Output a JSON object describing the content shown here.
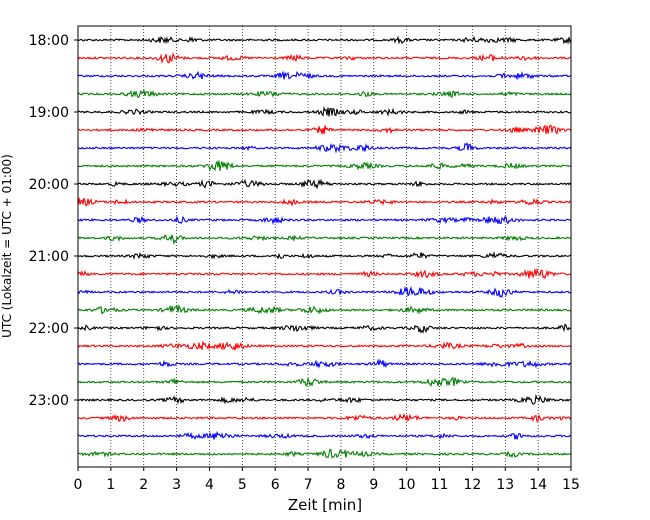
{
  "chart_data": {
    "type": "line",
    "xlabel": "Zeit  [min]",
    "ylabel": "UTC (Lokalzeit = UTC + 01:00)",
    "xlim": [
      0,
      15
    ],
    "x_ticks": [
      "0",
      "1",
      "2",
      "3",
      "4",
      "5",
      "6",
      "7",
      "8",
      "9",
      "10",
      "11",
      "12",
      "13",
      "14",
      "15"
    ],
    "y_ticks": [
      {
        "label": "18:00",
        "trace_index": 0
      },
      {
        "label": "19:00",
        "trace_index": 4
      },
      {
        "label": "20:00",
        "trace_index": 8
      },
      {
        "label": "21:00",
        "trace_index": 12
      },
      {
        "label": "22:00",
        "trace_index": 16
      },
      {
        "label": "23:00",
        "trace_index": 20
      }
    ],
    "trace_colors": [
      "#000000",
      "#ff0000",
      "#0000ff",
      "#008000"
    ],
    "traces": [
      {
        "start": "18:00"
      },
      {
        "start": "18:15"
      },
      {
        "start": "18:30"
      },
      {
        "start": "18:45"
      },
      {
        "start": "19:00"
      },
      {
        "start": "19:15"
      },
      {
        "start": "19:30"
      },
      {
        "start": "19:45"
      },
      {
        "start": "20:00"
      },
      {
        "start": "20:15"
      },
      {
        "start": "20:30"
      },
      {
        "start": "20:45"
      },
      {
        "start": "21:00"
      },
      {
        "start": "21:15"
      },
      {
        "start": "21:30"
      },
      {
        "start": "21:45"
      },
      {
        "start": "22:00"
      },
      {
        "start": "22:15"
      },
      {
        "start": "22:30"
      },
      {
        "start": "22:45"
      },
      {
        "start": "23:00"
      },
      {
        "start": "23:15"
      },
      {
        "start": "23:30"
      },
      {
        "start": "23:45"
      }
    ],
    "grid": {
      "x": true,
      "y": false,
      "style": "dotted"
    }
  }
}
